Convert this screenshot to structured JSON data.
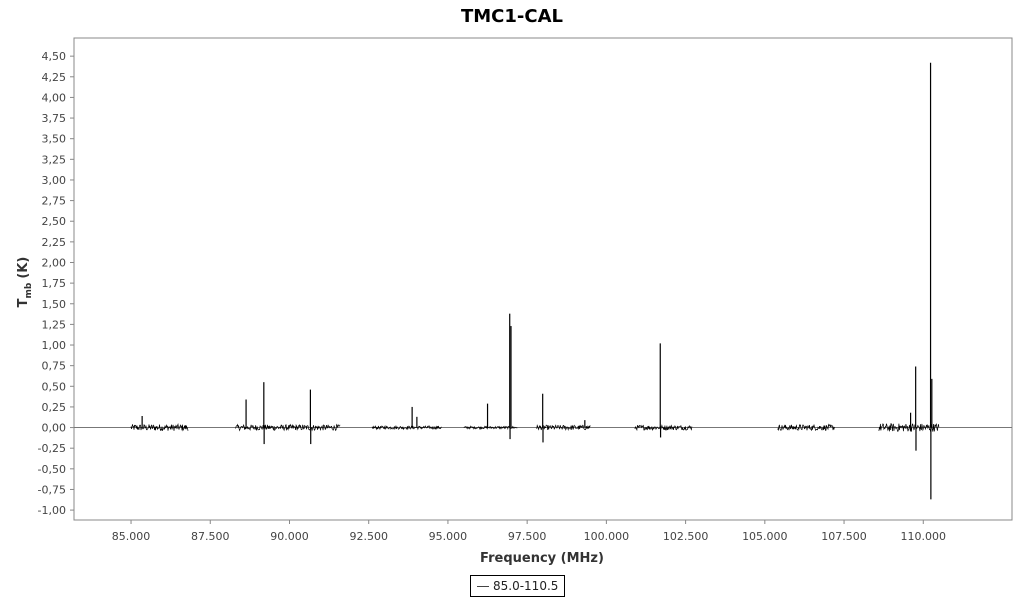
{
  "chart_data": {
    "type": "line",
    "title": "TMC1-CAL",
    "xlabel": "Frequency (MHz)",
    "ylabel_main": "T",
    "ylabel_sub": "mb",
    "ylabel_unit": "(K)",
    "xlim": [
      83200,
      112800
    ],
    "ylim": [
      -1.12,
      4.72
    ],
    "x_ticks": [
      85000,
      87500,
      90000,
      92500,
      95000,
      97500,
      100000,
      102500,
      105000,
      107500,
      110000
    ],
    "x_tick_labels": [
      "85.000",
      "87.500",
      "90.000",
      "92.500",
      "95.000",
      "97.500",
      "100.000",
      "102.500",
      "105.000",
      "107.500",
      "110.000"
    ],
    "y_ticks": [
      -1.0,
      -0.75,
      -0.5,
      -0.25,
      0.0,
      0.25,
      0.5,
      0.75,
      1.0,
      1.25,
      1.5,
      1.75,
      2.0,
      2.25,
      2.5,
      2.75,
      3.0,
      3.25,
      3.5,
      3.75,
      4.0,
      4.25,
      4.5
    ],
    "y_tick_labels": [
      "-1,00",
      "-0,75",
      "-0,50",
      "-0,25",
      "0,00",
      "0,25",
      "0,50",
      "0,75",
      "1,00",
      "1,25",
      "1,50",
      "1,75",
      "2,00",
      "2,25",
      "2,50",
      "2,75",
      "3,00",
      "3,25",
      "3,50",
      "3,75",
      "4,00",
      "4,25",
      "4,50"
    ],
    "grid": false,
    "legend_position": "bottom-center",
    "series": [
      {
        "name": "85.0-110.5",
        "color": "#000000",
        "segments": [
          {
            "x_start": 85000,
            "x_end": 86800,
            "noise": 0.04
          },
          {
            "x_start": 88300,
            "x_end": 91600,
            "noise": 0.035
          },
          {
            "x_start": 92600,
            "x_end": 94800,
            "noise": 0.02
          },
          {
            "x_start": 95500,
            "x_end": 97200,
            "noise": 0.015
          },
          {
            "x_start": 97800,
            "x_end": 99500,
            "noise": 0.03
          },
          {
            "x_start": 100900,
            "x_end": 102700,
            "noise": 0.03
          },
          {
            "x_start": 105400,
            "x_end": 107200,
            "noise": 0.035
          },
          {
            "x_start": 108600,
            "x_end": 110500,
            "noise": 0.05
          }
        ],
        "peaks": [
          {
            "x": 85350,
            "y": 0.14
          },
          {
            "x": 88630,
            "y": 0.34
          },
          {
            "x": 89190,
            "y": 0.55
          },
          {
            "x": 89200,
            "y": -0.2
          },
          {
            "x": 90660,
            "y": 0.46
          },
          {
            "x": 90670,
            "y": -0.2
          },
          {
            "x": 93870,
            "y": 0.25
          },
          {
            "x": 94020,
            "y": 0.13
          },
          {
            "x": 96250,
            "y": 0.29
          },
          {
            "x": 96950,
            "y": 1.38
          },
          {
            "x": 96960,
            "y": -0.14
          },
          {
            "x": 96990,
            "y": 1.23
          },
          {
            "x": 97990,
            "y": 0.41
          },
          {
            "x": 98000,
            "y": -0.18
          },
          {
            "x": 99320,
            "y": 0.09
          },
          {
            "x": 101700,
            "y": 1.02
          },
          {
            "x": 101710,
            "y": -0.12
          },
          {
            "x": 109760,
            "y": 0.74
          },
          {
            "x": 109770,
            "y": -0.28
          },
          {
            "x": 109600,
            "y": 0.18
          },
          {
            "x": 110230,
            "y": 4.42
          },
          {
            "x": 110240,
            "y": -0.87
          },
          {
            "x": 110270,
            "y": 0.59
          }
        ]
      }
    ]
  }
}
